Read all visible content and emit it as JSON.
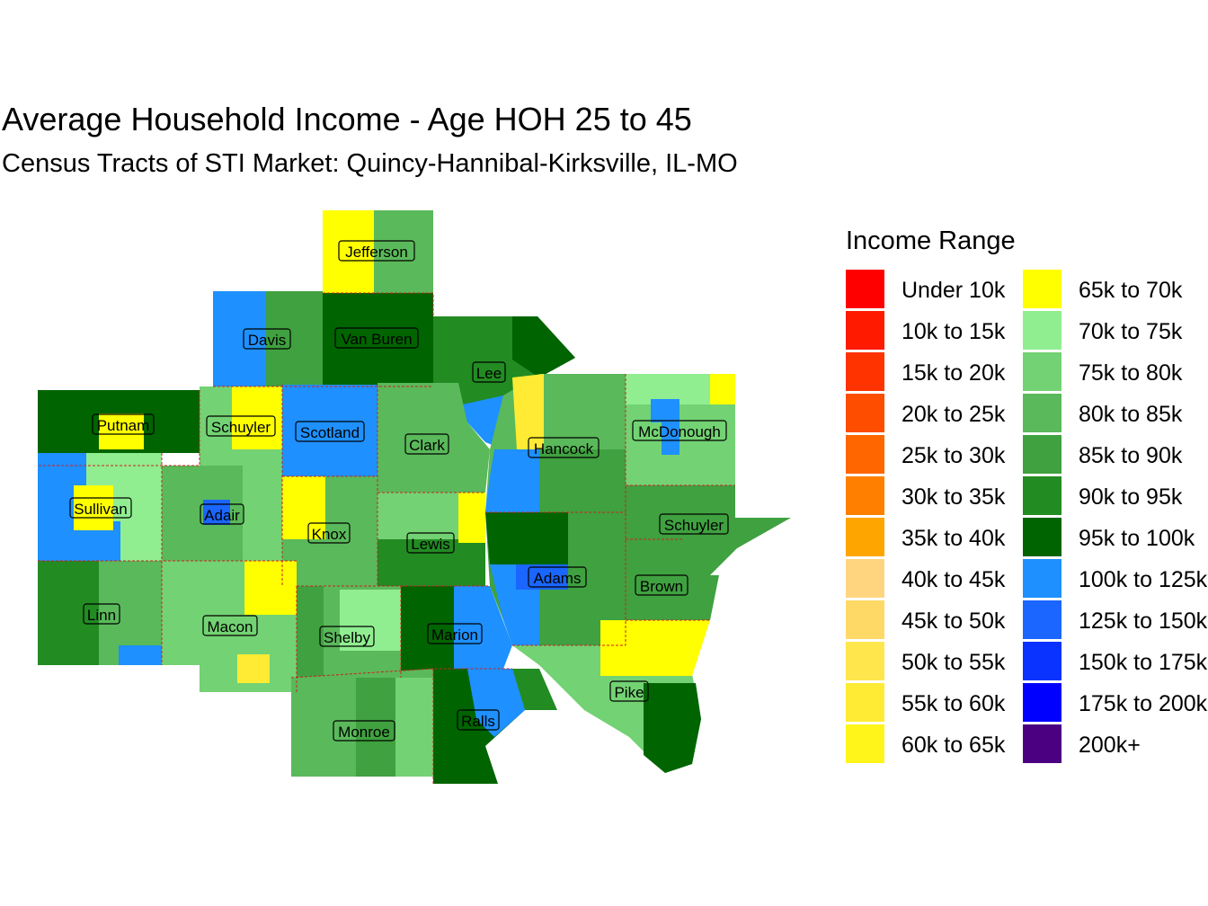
{
  "title": "Average Household Income - Age HOH 25 to 45",
  "subtitle": "Census Tracts of STI Market: Quincy-Hannibal-Kirksville, IL-MO",
  "legend": {
    "title": "Income Range",
    "col1": [
      {
        "label": "Under 10k",
        "color": "#FF0000"
      },
      {
        "label": "10k to 15k",
        "color": "#FF1A00"
      },
      {
        "label": "15k to 20k",
        "color": "#FF3300"
      },
      {
        "label": "20k to 25k",
        "color": "#FF4D00"
      },
      {
        "label": "25k to 30k",
        "color": "#FF6600"
      },
      {
        "label": "30k to 35k",
        "color": "#FF8000"
      },
      {
        "label": "35k to 40k",
        "color": "#FFA500"
      },
      {
        "label": "40k to 45k",
        "color": "#FFD580"
      },
      {
        "label": "45k to 50k",
        "color": "#FFD966"
      },
      {
        "label": "50k to 55k",
        "color": "#FFE64D"
      },
      {
        "label": "55k to 60k",
        "color": "#FFEB33"
      },
      {
        "label": "60k to 65k",
        "color": "#FFF51A"
      }
    ],
    "col2": [
      {
        "label": "65k to 70k",
        "color": "#FFFF00"
      },
      {
        "label": "70k to 75k",
        "color": "#90EE90"
      },
      {
        "label": "75k to 80k",
        "color": "#73D273"
      },
      {
        "label": "80k to 85k",
        "color": "#5AB95A"
      },
      {
        "label": "85k to 90k",
        "color": "#3FA13F"
      },
      {
        "label": "90k to 95k",
        "color": "#228B22"
      },
      {
        "label": "95k to 100k",
        "color": "#006400"
      },
      {
        "label": "100k to 125k",
        "color": "#1E90FF"
      },
      {
        "label": "125k to 150k",
        "color": "#1A66FF"
      },
      {
        "label": "150k to 175k",
        "color": "#0A33FF"
      },
      {
        "label": "175k to 200k",
        "color": "#0000FF"
      },
      {
        "label": "200k+",
        "color": "#4B0082"
      }
    ]
  },
  "counties": [
    {
      "name": "Jefferson"
    },
    {
      "name": "Davis"
    },
    {
      "name": "Van Buren"
    },
    {
      "name": "Lee"
    },
    {
      "name": "Putnam"
    },
    {
      "name": "Schuyler"
    },
    {
      "name": "Scotland"
    },
    {
      "name": "Clark"
    },
    {
      "name": "Hancock"
    },
    {
      "name": "McDonough"
    },
    {
      "name": "Sullivan"
    },
    {
      "name": "Adair"
    },
    {
      "name": "Knox"
    },
    {
      "name": "Lewis"
    },
    {
      "name": "Schuyler"
    },
    {
      "name": "Adams"
    },
    {
      "name": "Brown"
    },
    {
      "name": "Linn"
    },
    {
      "name": "Macon"
    },
    {
      "name": "Shelby"
    },
    {
      "name": "Marion"
    },
    {
      "name": "Pike"
    },
    {
      "name": "Ralls"
    },
    {
      "name": "Monroe"
    }
  ]
}
